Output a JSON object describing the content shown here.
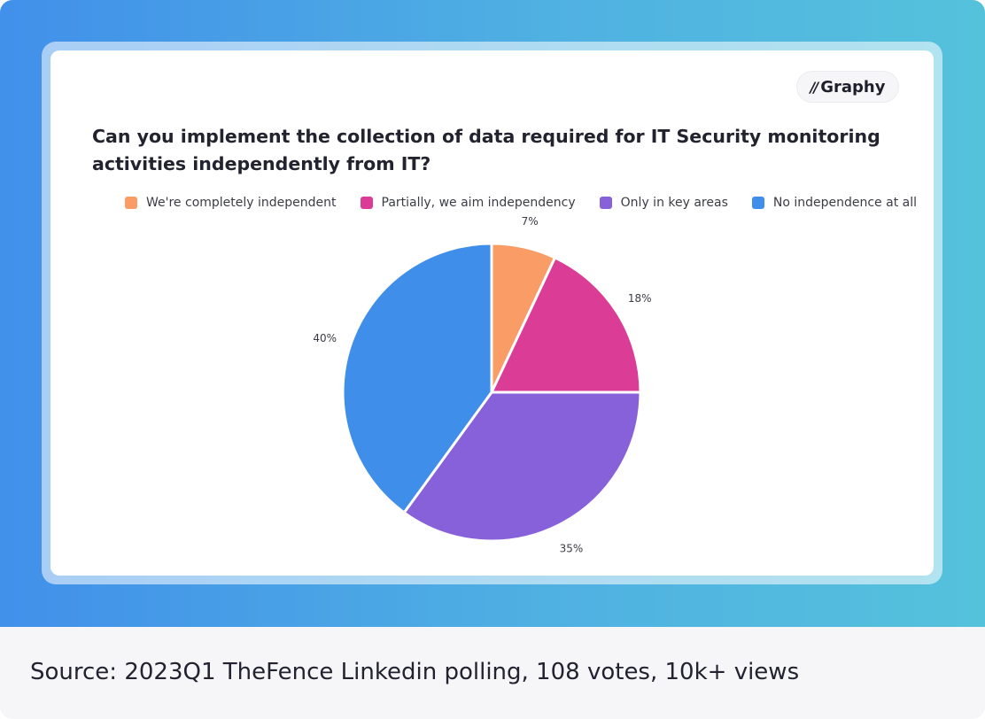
{
  "brand": {
    "logo_mark": "//",
    "logo_text": "Graphy"
  },
  "footer": {
    "source": "Source: 2023Q1 TheFence Linkedin polling, 108 votes, 10k+ views"
  },
  "chart_data": {
    "type": "pie",
    "title": "Can you implement the collection of data required for IT Security monitoring activities independently from IT?",
    "legend_position": "top",
    "categories": [
      "We're completely independent",
      "Partially, we aim independency",
      "Only in key areas",
      "No independence at all"
    ],
    "values": [
      7,
      18,
      35,
      40
    ],
    "labels": [
      "7%",
      "18%",
      "35%",
      "40%"
    ],
    "colors": [
      "#f99c65",
      "#db3d96",
      "#8761d9",
      "#3f8ee9"
    ]
  }
}
